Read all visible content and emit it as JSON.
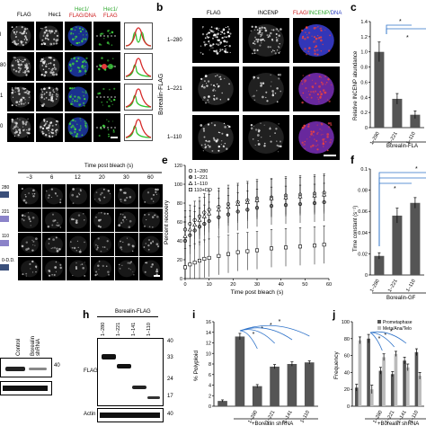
{
  "panel_a": {
    "col_labels": {
      "flag": "FLAG",
      "hec1": "Hec1",
      "merge1_top": "Hec1/",
      "merge1_bottom": "FLAG/DNA",
      "merge2_top": "Hec1/",
      "merge2_bottom": "FLAG"
    },
    "row_labels": [
      "l",
      "80",
      "1",
      "0"
    ]
  },
  "panel_b": {
    "letter": "b",
    "col_labels": {
      "flag": "FLAG",
      "incenp": "INCENP",
      "merge_red": "FLAG/",
      "merge_green": "INCENP/",
      "merge_blue": "DNA"
    },
    "group_label": "Borealin-FLAG",
    "rows": [
      "1–280",
      "1–221",
      "1–110"
    ]
  },
  "panel_c": {
    "letter": "c",
    "ylabel": "Relative INCENP abundance",
    "xlabel_group": "Borealin-FLA",
    "stars": [
      "*",
      "*"
    ]
  },
  "panel_d": {
    "time_title": "Time post bleach (s)",
    "times": [
      "−3",
      "6",
      "12",
      "20",
      "30",
      "60"
    ],
    "row_labels": [
      "280",
      "221",
      "110",
      "0-D.D."
    ]
  },
  "panel_e": {
    "letter": "e",
    "xlabel": "Time post bleach (s)",
    "ylabel": "Percent recovery",
    "legend": [
      "1–280",
      "1–221",
      "1–110",
      "110+DD"
    ]
  },
  "panel_f": {
    "letter": "f",
    "ylabel": "Time constant (s⁻¹)",
    "xlabel_group": "Borealin-GF",
    "stars": [
      "*",
      "*"
    ]
  },
  "panel_g": {
    "col_labels": [
      "Control",
      "Borealin shRNA"
    ],
    "marker": "40"
  },
  "panel_h": {
    "letter": "h",
    "title": "Borealin-FLAG",
    "lanes": [
      "1–280",
      "1–221",
      "1–141",
      "1–110"
    ],
    "markers": [
      "40",
      "33",
      "24",
      "17",
      "40"
    ],
    "blot_labels": [
      "FLAG",
      "Actin"
    ]
  },
  "panel_i": {
    "letter": "i",
    "ylabel": "% Polyploid",
    "xlabel_group": "+Borealin shRNA",
    "stars": [
      "*",
      "*",
      "*",
      "*"
    ]
  },
  "panel_j": {
    "letter": "j",
    "ylabel": "Frequency",
    "legend": [
      "Prometaphase",
      "Meta/Ana/Telo"
    ],
    "xlabel_group": "+Borealin shRNA",
    "stars": [
      "*",
      "*",
      "*"
    ]
  },
  "chart_data": [
    {
      "type": "bar",
      "panel": "c",
      "categories": [
        "1–280",
        "1–221",
        "1–110"
      ],
      "values": [
        1.0,
        0.38,
        0.17
      ],
      "errors": [
        0.13,
        0.07,
        0.05
      ],
      "xlabel": "Borealin-FLA",
      "ylabel": "Relative INCENP abundance",
      "ylim": [
        0,
        1.4
      ],
      "yticks": [
        "0",
        "0.2",
        "0.4",
        "0.6",
        "0.8",
        "1.0",
        "1.2",
        "1.4"
      ]
    },
    {
      "type": "scatter",
      "panel": "e",
      "xlabel": "Time post bleach (s)",
      "ylabel": "Percent recovery",
      "xlim": [
        0,
        60
      ],
      "ylim": [
        0,
        120
      ],
      "xticks": [
        "0",
        "10",
        "20",
        "30",
        "40",
        "50",
        "60"
      ],
      "yticks": [
        "0",
        "20",
        "40",
        "60",
        "80",
        "100",
        "120"
      ],
      "series": [
        {
          "name": "1–280",
          "marker": "circle",
          "points": [
            [
              0,
              52
            ],
            [
              2,
              58
            ],
            [
              4,
              62
            ],
            [
              6,
              66
            ],
            [
              8,
              70
            ],
            [
              10,
              73
            ],
            [
              14,
              76
            ],
            [
              18,
              79
            ],
            [
              22,
              81
            ],
            [
              26,
              83
            ],
            [
              30,
              85
            ],
            [
              36,
              86
            ],
            [
              42,
              88
            ],
            [
              48,
              89
            ],
            [
              54,
              90
            ],
            [
              58,
              91
            ]
          ]
        },
        {
          "name": "1–221",
          "marker": "circle",
          "points": [
            [
              0,
              40
            ],
            [
              2,
              46
            ],
            [
              4,
              51
            ],
            [
              6,
              55
            ],
            [
              8,
              58
            ],
            [
              10,
              61
            ],
            [
              14,
              65
            ],
            [
              18,
              68
            ],
            [
              22,
              71
            ],
            [
              26,
              73
            ],
            [
              30,
              75
            ],
            [
              36,
              77
            ],
            [
              42,
              78
            ],
            [
              48,
              79
            ],
            [
              54,
              80
            ],
            [
              58,
              81
            ]
          ]
        },
        {
          "name": "1–110",
          "marker": "triangle",
          "points": [
            [
              0,
              45
            ],
            [
              2,
              52
            ],
            [
              4,
              57
            ],
            [
              6,
              62
            ],
            [
              8,
              66
            ],
            [
              10,
              69
            ],
            [
              14,
              73
            ],
            [
              18,
              76
            ],
            [
              22,
              79
            ],
            [
              26,
              81
            ],
            [
              30,
              83
            ],
            [
              36,
              85
            ],
            [
              42,
              86
            ],
            [
              48,
              87
            ],
            [
              54,
              88
            ],
            [
              58,
              89
            ]
          ]
        },
        {
          "name": "110+DD",
          "marker": "square",
          "points": [
            [
              0,
              12
            ],
            [
              2,
              15
            ],
            [
              4,
              17
            ],
            [
              6,
              19
            ],
            [
              8,
              21
            ],
            [
              10,
              22
            ],
            [
              14,
              24
            ],
            [
              18,
              26
            ],
            [
              22,
              28
            ],
            [
              26,
              29
            ],
            [
              30,
              30
            ],
            [
              36,
              32
            ],
            [
              42,
              33
            ],
            [
              48,
              34
            ],
            [
              54,
              35
            ],
            [
              58,
              36
            ]
          ]
        }
      ],
      "errors": 20
    },
    {
      "type": "bar",
      "panel": "f",
      "categories": [
        "1–280",
        "1–221",
        "1–110"
      ],
      "values": [
        0.018,
        0.056,
        0.068
      ],
      "errors": [
        0.003,
        0.007,
        0.005
      ],
      "xlabel": "Borealin-GF",
      "ylabel": "Time constant (s⁻¹)",
      "ylim": [
        0,
        0.1
      ],
      "yticks": [
        "0",
        "0.02",
        "0.04",
        "0.06",
        "0.08",
        "0.1"
      ]
    },
    {
      "type": "bar",
      "panel": "i",
      "categories": [
        "",
        "",
        "1–280",
        "1–221",
        "1–141",
        "1–110"
      ],
      "values": [
        1.0,
        13.2,
        3.8,
        7.5,
        8.0,
        8.3
      ],
      "errors": [
        0.2,
        0.6,
        0.3,
        0.4,
        0.4,
        0.3
      ],
      "xlabel": "+Borealin shRNA",
      "ylabel": "% Polyploid",
      "ylim": [
        0,
        16
      ],
      "yticks": [
        "0",
        "2",
        "4",
        "6",
        "8",
        "10",
        "12",
        "14",
        "16"
      ]
    },
    {
      "type": "bar",
      "panel": "j",
      "categories": [
        "",
        "",
        "1–280",
        "1–221",
        "1–141",
        "1–110"
      ],
      "series": [
        {
          "name": "Prometaphase",
          "values": [
            22,
            80,
            42,
            38,
            54,
            64
          ],
          "errors": [
            4,
            5,
            4,
            3,
            4,
            4
          ]
        },
        {
          "name": "Meta/Ana/Telo",
          "values": [
            78,
            20,
            58,
            62,
            46,
            36
          ],
          "errors": [
            4,
            5,
            4,
            3,
            4,
            4
          ]
        }
      ],
      "xlabel": "+Borealin shRNA",
      "ylabel": "Frequency",
      "ylim": [
        0,
        100
      ],
      "yticks": [
        "0",
        "20",
        "40",
        "60",
        "80",
        "100"
      ]
    }
  ]
}
